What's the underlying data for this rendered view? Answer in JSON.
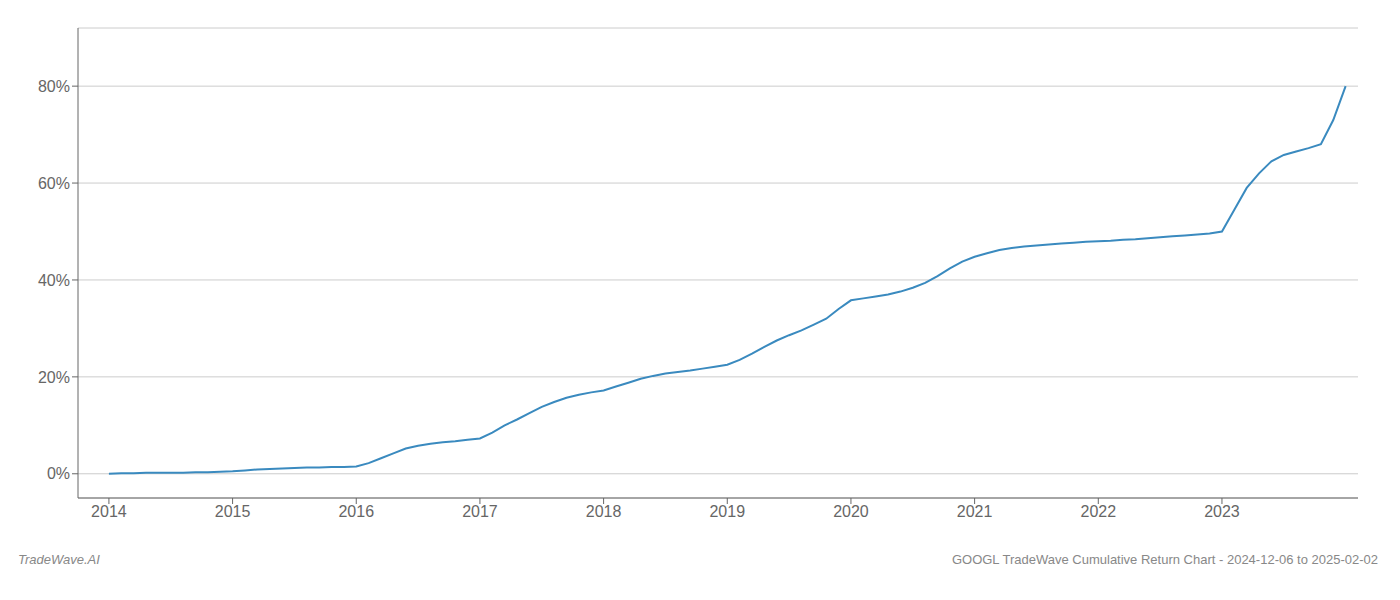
{
  "chart_data": {
    "type": "line",
    "x": [
      2014.0,
      2014.1,
      2014.2,
      2014.3,
      2014.4,
      2014.5,
      2014.6,
      2014.7,
      2014.8,
      2014.9,
      2015.0,
      2015.1,
      2015.2,
      2015.3,
      2015.4,
      2015.5,
      2015.6,
      2015.7,
      2015.8,
      2015.9,
      2016.0,
      2016.1,
      2016.2,
      2016.3,
      2016.4,
      2016.5,
      2016.6,
      2016.7,
      2016.8,
      2016.9,
      2017.0,
      2017.1,
      2017.2,
      2017.3,
      2017.4,
      2017.5,
      2017.6,
      2017.7,
      2017.8,
      2017.9,
      2018.0,
      2018.1,
      2018.2,
      2018.3,
      2018.4,
      2018.5,
      2018.6,
      2018.7,
      2018.8,
      2018.9,
      2019.0,
      2019.1,
      2019.2,
      2019.3,
      2019.4,
      2019.5,
      2019.6,
      2019.7,
      2019.8,
      2019.9,
      2020.0,
      2020.1,
      2020.2,
      2020.3,
      2020.4,
      2020.5,
      2020.6,
      2020.7,
      2020.8,
      2020.9,
      2021.0,
      2021.1,
      2021.2,
      2021.3,
      2021.4,
      2021.5,
      2021.6,
      2021.7,
      2021.8,
      2021.9,
      2022.0,
      2022.1,
      2022.2,
      2022.3,
      2022.4,
      2022.5,
      2022.6,
      2022.7,
      2022.8,
      2022.9,
      2023.0,
      2023.1,
      2023.2,
      2023.3,
      2023.4,
      2023.5,
      2023.6,
      2023.7,
      2023.8,
      2023.9,
      2024.0
    ],
    "values": [
      0.0,
      0.001,
      0.001,
      0.002,
      0.002,
      0.002,
      0.002,
      0.003,
      0.003,
      0.004,
      0.005,
      0.007,
      0.009,
      0.01,
      0.011,
      0.012,
      0.013,
      0.013,
      0.014,
      0.014,
      0.015,
      0.022,
      0.032,
      0.042,
      0.052,
      0.058,
      0.062,
      0.065,
      0.067,
      0.07,
      0.073,
      0.085,
      0.1,
      0.112,
      0.125,
      0.138,
      0.148,
      0.157,
      0.163,
      0.168,
      0.172,
      0.18,
      0.188,
      0.196,
      0.202,
      0.207,
      0.21,
      0.213,
      0.217,
      0.221,
      0.225,
      0.235,
      0.248,
      0.262,
      0.275,
      0.286,
      0.296,
      0.308,
      0.32,
      0.34,
      0.358,
      0.362,
      0.366,
      0.37,
      0.376,
      0.384,
      0.394,
      0.408,
      0.424,
      0.438,
      0.448,
      0.455,
      0.462,
      0.466,
      0.469,
      0.471,
      0.473,
      0.475,
      0.477,
      0.479,
      0.48,
      0.481,
      0.483,
      0.484,
      0.486,
      0.488,
      0.49,
      0.492,
      0.494,
      0.496,
      0.5,
      0.545,
      0.59,
      0.62,
      0.645,
      0.658,
      0.665,
      0.672,
      0.68,
      0.73,
      0.8
    ],
    "color": "#3a8abf",
    "xlim": [
      2013.75,
      2024.1
    ],
    "ylim": [
      -0.05,
      0.92
    ],
    "xticks": [
      2014,
      2015,
      2016,
      2017,
      2018,
      2019,
      2020,
      2021,
      2022,
      2023
    ],
    "yticks": [
      {
        "value": 0.0,
        "label": "0%"
      },
      {
        "value": 0.2,
        "label": "20%"
      },
      {
        "value": 0.4,
        "label": "40%"
      },
      {
        "value": 0.6,
        "label": "60%"
      },
      {
        "value": 0.8,
        "label": "80%"
      }
    ],
    "grid": "y",
    "annotations": [
      "TradeWave.AI",
      "GOOGL TradeWave Cumulative Return Chart - 2024-12-06 to 2025-02-02"
    ]
  }
}
